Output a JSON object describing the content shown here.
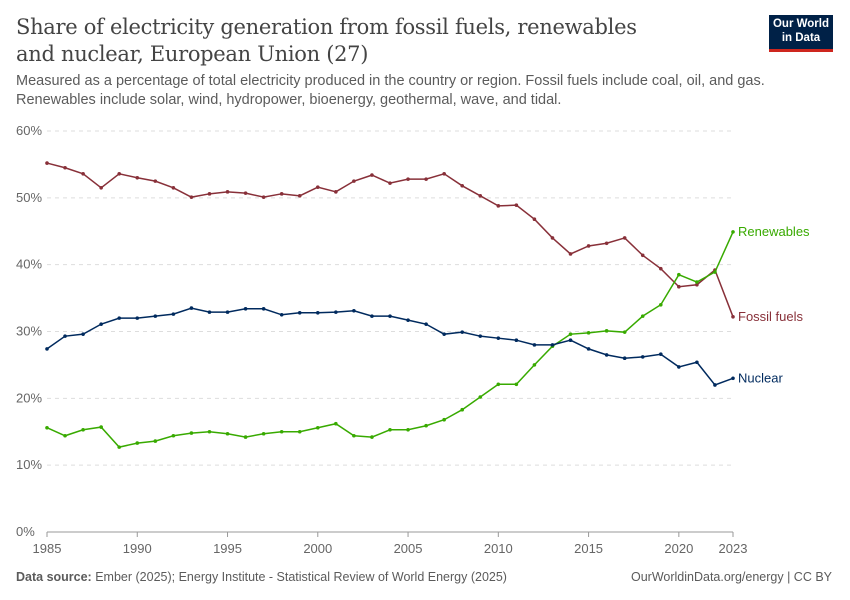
{
  "header": {
    "title": "Share of electricity generation from fossil fuels, renewables and nuclear, European Union (27)",
    "subtitle": "Measured as a percentage of total electricity produced in the country or region. Fossil fuels include coal, oil, and gas. Renewables include solar, wind, hydropower, bioenergy, geothermal, wave, and tidal.",
    "logo": "Our World in Data"
  },
  "footer": {
    "source_label": "Data source:",
    "source": "Ember (2025); Energy Institute - Statistical Review of World Energy (2025)",
    "credit": "OurWorldinData.org/energy | CC BY"
  },
  "chart_data": {
    "type": "line",
    "title": "Share of electricity generation from fossil fuels, renewables and nuclear, European Union (27)",
    "x": [
      1985,
      1986,
      1987,
      1988,
      1989,
      1990,
      1991,
      1992,
      1993,
      1994,
      1995,
      1996,
      1997,
      1998,
      1999,
      2000,
      2001,
      2002,
      2003,
      2004,
      2005,
      2006,
      2007,
      2008,
      2009,
      2010,
      2011,
      2012,
      2013,
      2014,
      2015,
      2016,
      2017,
      2018,
      2019,
      2020,
      2021,
      2022,
      2023
    ],
    "xticks": [
      "1985",
      "1990",
      "1995",
      "2000",
      "2005",
      "2010",
      "2015",
      "2020",
      "2023"
    ],
    "yticks": [
      "0%",
      "10%",
      "20%",
      "30%",
      "40%",
      "50%",
      "60%"
    ],
    "ylim": [
      0,
      60
    ],
    "xlim": [
      1985,
      2023
    ],
    "grid": "horizontal dashed",
    "legend": "inline line-end labels",
    "series": [
      {
        "name": "Fossil fuels",
        "color": "#883039",
        "values": [
          55.2,
          54.5,
          53.6,
          51.5,
          53.6,
          53.0,
          52.5,
          51.5,
          50.1,
          50.6,
          50.9,
          50.7,
          50.1,
          50.6,
          50.3,
          51.6,
          50.9,
          52.5,
          53.4,
          52.2,
          52.8,
          52.8,
          53.6,
          51.8,
          50.3,
          48.8,
          48.9,
          46.8,
          44.0,
          41.6,
          42.8,
          43.2,
          44.0,
          41.4,
          39.4,
          36.7,
          37.0,
          39.2,
          32.2
        ]
      },
      {
        "name": "Renewables",
        "color": "#38aa00",
        "values": [
          15.6,
          14.4,
          15.3,
          15.7,
          12.7,
          13.3,
          13.6,
          14.4,
          14.8,
          15.0,
          14.7,
          14.2,
          14.7,
          15.0,
          15.0,
          15.6,
          16.2,
          14.4,
          14.2,
          15.3,
          15.3,
          15.9,
          16.8,
          18.3,
          20.2,
          22.1,
          22.1,
          25.0,
          27.8,
          29.6,
          29.8,
          30.1,
          29.9,
          32.3,
          34.0,
          38.5,
          37.4,
          38.9,
          44.9
        ]
      },
      {
        "name": "Nuclear",
        "color": "#002a5e",
        "values": [
          27.4,
          29.3,
          29.6,
          31.1,
          32.0,
          32.0,
          32.3,
          32.6,
          33.5,
          32.9,
          32.9,
          33.4,
          33.4,
          32.5,
          32.8,
          32.8,
          32.9,
          33.1,
          32.3,
          32.3,
          31.7,
          31.1,
          29.6,
          29.9,
          29.3,
          29.0,
          28.7,
          28.0,
          28.0,
          28.7,
          27.4,
          26.5,
          26.0,
          26.2,
          26.6,
          24.7,
          25.4,
          22.0,
          23.0
        ]
      }
    ]
  }
}
